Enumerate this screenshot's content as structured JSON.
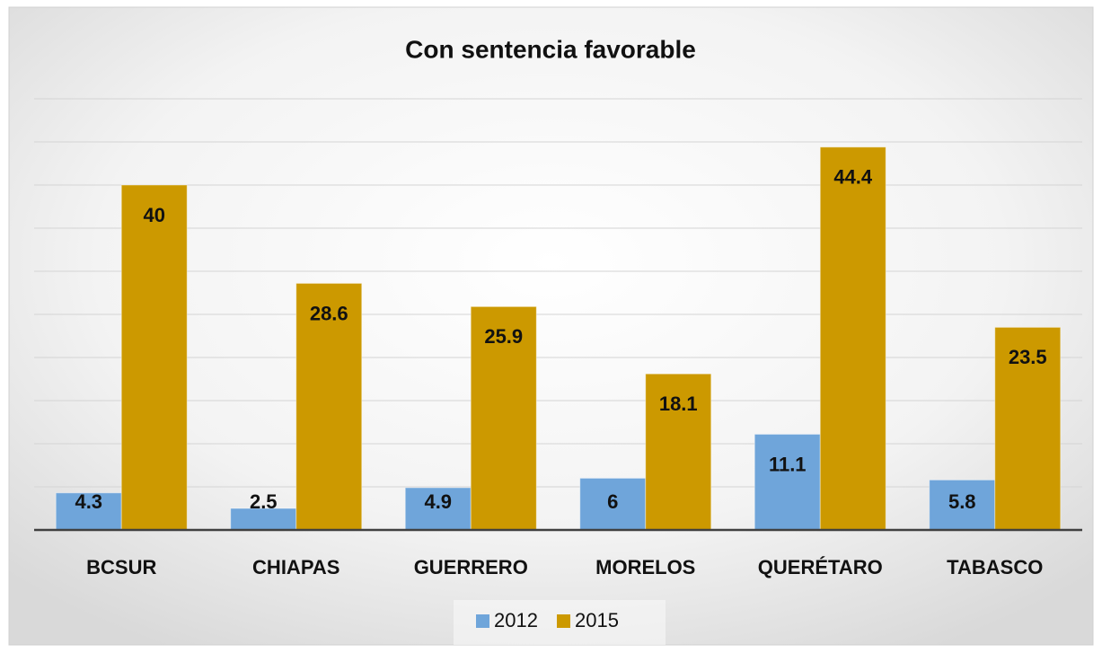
{
  "chart_data": {
    "type": "bar",
    "title": "Con sentencia favorable",
    "categories": [
      "BCSUR",
      "CHIAPAS",
      "GUERRERO",
      "MORELOS",
      "QUERÉTARO",
      "TABASCO"
    ],
    "series": [
      {
        "name": "2012",
        "color": "#6fa5da",
        "values": [
          4.3,
          2.5,
          4.9,
          6,
          11.1,
          5.8
        ]
      },
      {
        "name": "2015",
        "color": "#cc9900",
        "values": [
          40,
          28.6,
          25.9,
          18.1,
          44.4,
          23.5
        ]
      }
    ],
    "ylim": [
      0,
      50
    ],
    "yticks": [
      0,
      5,
      10,
      15,
      20,
      25,
      30,
      35,
      40,
      45,
      50
    ],
    "grid": true,
    "legend": "bottom"
  }
}
